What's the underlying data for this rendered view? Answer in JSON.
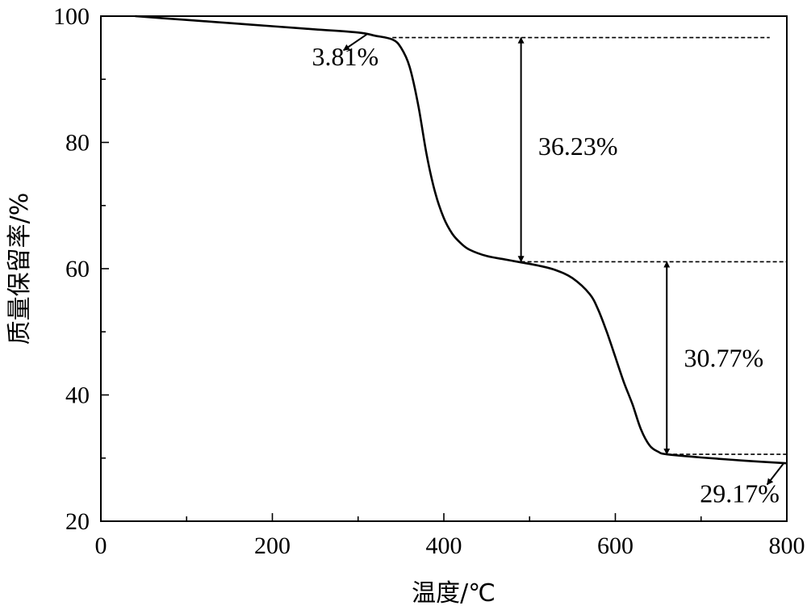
{
  "chart_data": {
    "type": "line",
    "xlabel": "温度/℃",
    "ylabel": "质量保留率/%",
    "xlim": [
      0,
      800
    ],
    "ylim": [
      20,
      100
    ],
    "x_ticks": [
      0,
      200,
      400,
      600,
      800
    ],
    "y_ticks": [
      20,
      40,
      60,
      80,
      100
    ],
    "x_tick_labels": [
      "0",
      "200",
      "400",
      "600",
      "800"
    ],
    "y_tick_labels": [
      "20",
      "40",
      "60",
      "80",
      "100"
    ],
    "grid": false,
    "legend": false,
    "series": [
      {
        "x": [
          40,
          100,
          150,
          200,
          250,
          300,
          320,
          340,
          350,
          360,
          370,
          380,
          390,
          400,
          410,
          420,
          430,
          450,
          470,
          490,
          510,
          530,
          550,
          570,
          580,
          590,
          600,
          610,
          620,
          630,
          640,
          650,
          660,
          700,
          750,
          800
        ],
        "y": [
          100,
          99.4,
          98.9,
          98.4,
          97.9,
          97.4,
          96.9,
          96.3,
          95.0,
          92.0,
          86.0,
          78.0,
          72.0,
          68.0,
          65.5,
          64.0,
          63.0,
          62.0,
          61.5,
          61.0,
          60.5,
          59.8,
          58.5,
          56.0,
          53.5,
          50.0,
          46.0,
          42.0,
          38.5,
          34.5,
          32.0,
          31.0,
          30.6,
          30.1,
          29.6,
          29.17
        ]
      }
    ],
    "reference_lines": [
      {
        "y": 100,
        "x_start": 40,
        "x_end": 780
      },
      {
        "y": 96.6,
        "x_start": 340,
        "x_end": 780
      },
      {
        "y": 61.1,
        "x_start": 490,
        "x_end": 800
      },
      {
        "y": 30.6,
        "x_start": 660,
        "x_end": 800
      }
    ],
    "range_arrows": [
      {
        "x": 490,
        "y_top": 96.6,
        "y_bottom": 61.1
      },
      {
        "x": 660,
        "y_top": 61.1,
        "y_bottom": 30.6
      }
    ],
    "pointer_arrows": [
      {
        "x_from": 310,
        "y_from": 97.1,
        "x_to": 283,
        "y_to": 94.6
      },
      {
        "x_from": 797,
        "y_from": 29.3,
        "x_to": 777,
        "y_to": 25.8
      }
    ],
    "annotations": [
      {
        "text": "3.81%",
        "x": 285,
        "y": 92.2,
        "anchor": "middle"
      },
      {
        "text": "36.23%",
        "x": 510,
        "y": 78.0,
        "anchor": "start"
      },
      {
        "text": "30.77%",
        "x": 680,
        "y": 44.5,
        "anchor": "start"
      },
      {
        "text": "29.17%",
        "x": 745,
        "y": 23.0,
        "anchor": "middle"
      }
    ]
  }
}
